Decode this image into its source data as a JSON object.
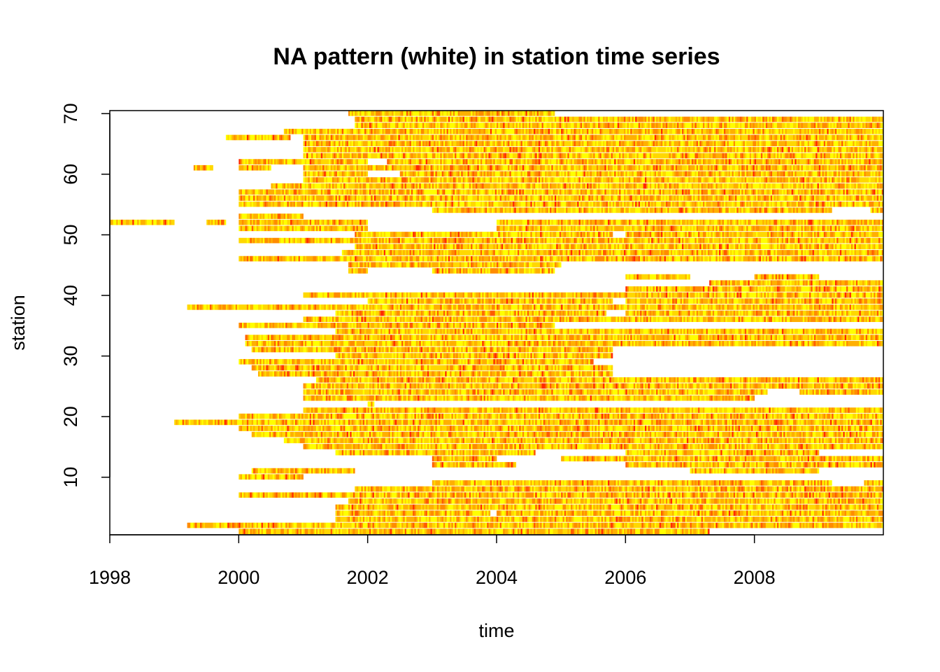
{
  "chart_data": {
    "type": "heatmap",
    "title": "NA pattern (white) in station time series",
    "xlabel": "time",
    "ylabel": "station",
    "x_range": [
      1998,
      2010
    ],
    "y_range": [
      0.5,
      70.5
    ],
    "x_ticks": [
      1998,
      2000,
      2002,
      2004,
      2006,
      2008
    ],
    "x_tick_labels": [
      "1998",
      "2000",
      "2002",
      "2004",
      "2006",
      "2008"
    ],
    "y_ticks": [
      10,
      20,
      30,
      40,
      50,
      60,
      70
    ],
    "y_tick_labels": [
      "10",
      "20",
      "30",
      "40",
      "50",
      "60",
      "70"
    ],
    "missing_color": "#ffffff",
    "color_scale": [
      "#ffff00",
      "#ffd800",
      "#ffb000",
      "#ff8c00",
      "#ff5a00",
      "#ff2a00"
    ],
    "grid": false,
    "legend": "none",
    "stations": [
      {
        "station": 1,
        "segments": [
          [
            2000.0,
            2007.3
          ]
        ]
      },
      {
        "station": 2,
        "segments": [
          [
            1999.2,
            2010.0
          ]
        ]
      },
      {
        "station": 3,
        "segments": [
          [
            2001.5,
            2010.0
          ]
        ]
      },
      {
        "station": 4,
        "segments": [
          [
            2001.5,
            2003.9
          ],
          [
            2004.0,
            2010.0
          ]
        ]
      },
      {
        "station": 5,
        "segments": [
          [
            2001.5,
            2010.0
          ]
        ]
      },
      {
        "station": 6,
        "segments": [
          [
            2001.7,
            2010.0
          ]
        ]
      },
      {
        "station": 7,
        "segments": [
          [
            2000.0,
            2010.0
          ]
        ]
      },
      {
        "station": 8,
        "segments": [
          [
            2001.8,
            2010.0
          ]
        ]
      },
      {
        "station": 9,
        "segments": [
          [
            2003.0,
            2009.2
          ],
          [
            2009.7,
            2010.0
          ]
        ]
      },
      {
        "station": 10,
        "segments": [
          [
            2000.0,
            2001.0
          ]
        ]
      },
      {
        "station": 11,
        "segments": [
          [
            2000.2,
            2001.8
          ],
          [
            2007.0,
            2009.0
          ]
        ]
      },
      {
        "station": 12,
        "segments": [
          [
            2003.0,
            2004.3
          ],
          [
            2006.0,
            2010.0
          ]
        ]
      },
      {
        "station": 13,
        "segments": [
          [
            2003.0,
            2004.0
          ],
          [
            2005.0,
            2010.0
          ]
        ]
      },
      {
        "station": 14,
        "segments": [
          [
            2001.5,
            2004.6
          ],
          [
            2006.0,
            2009.0
          ]
        ]
      },
      {
        "station": 15,
        "segments": [
          [
            2001.0,
            2010.0
          ]
        ]
      },
      {
        "station": 16,
        "segments": [
          [
            2000.7,
            2010.0
          ]
        ]
      },
      {
        "station": 17,
        "segments": [
          [
            2000.2,
            2010.0
          ]
        ]
      },
      {
        "station": 18,
        "segments": [
          [
            2000.0,
            2010.0
          ]
        ]
      },
      {
        "station": 19,
        "segments": [
          [
            1999.0,
            2010.0
          ]
        ]
      },
      {
        "station": 20,
        "segments": [
          [
            2000.0,
            2010.0
          ]
        ]
      },
      {
        "station": 21,
        "segments": [
          [
            2001.0,
            2010.0
          ]
        ]
      },
      {
        "station": 22,
        "segments": [
          [
            2002.0,
            2002.1
          ]
        ]
      },
      {
        "station": 23,
        "segments": [
          [
            2001.0,
            2008.0
          ]
        ]
      },
      {
        "station": 24,
        "segments": [
          [
            2001.0,
            2008.2
          ],
          [
            2008.7,
            2010.0
          ]
        ]
      },
      {
        "station": 25,
        "segments": [
          [
            2001.0,
            2010.0
          ]
        ]
      },
      {
        "station": 26,
        "segments": [
          [
            2001.2,
            2010.0
          ]
        ]
      },
      {
        "station": 27,
        "segments": [
          [
            2000.3,
            2005.8
          ]
        ]
      },
      {
        "station": 28,
        "segments": [
          [
            2000.2,
            2005.8
          ]
        ]
      },
      {
        "station": 29,
        "segments": [
          [
            2000.0,
            2004.0
          ],
          [
            2004.0,
            2005.5
          ]
        ]
      },
      {
        "station": 30,
        "segments": [
          [
            2001.5,
            2005.8
          ]
        ]
      },
      {
        "station": 31,
        "segments": [
          [
            2000.2,
            2005.8
          ]
        ]
      },
      {
        "station": 32,
        "segments": [
          [
            2000.1,
            2010.0
          ]
        ]
      },
      {
        "station": 33,
        "segments": [
          [
            2000.1,
            2003.5
          ],
          [
            2003.5,
            2010.0
          ]
        ]
      },
      {
        "station": 34,
        "segments": [
          [
            2001.5,
            2010.0
          ]
        ]
      },
      {
        "station": 35,
        "segments": [
          [
            2000.0,
            2004.9
          ]
        ]
      },
      {
        "station": 36,
        "segments": [
          [
            2001.0,
            2010.0
          ]
        ]
      },
      {
        "station": 37,
        "segments": [
          [
            2001.5,
            2005.7
          ],
          [
            2006.0,
            2010.0
          ]
        ]
      },
      {
        "station": 38,
        "segments": [
          [
            1999.2,
            2010.0
          ]
        ]
      },
      {
        "station": 39,
        "segments": [
          [
            2002.0,
            2005.8
          ],
          [
            2006.0,
            2010.0
          ]
        ]
      },
      {
        "station": 40,
        "segments": [
          [
            2001.0,
            2010.0
          ]
        ]
      },
      {
        "station": 41,
        "segments": [
          [
            2006.0,
            2010.0
          ]
        ]
      },
      {
        "station": 42,
        "segments": [
          [
            2007.3,
            2010.0
          ]
        ]
      },
      {
        "station": 43,
        "segments": [
          [
            2006.0,
            2007.0
          ],
          [
            2008.0,
            2009.0
          ]
        ]
      },
      {
        "station": 44,
        "segments": [
          [
            2001.7,
            2002.0
          ],
          [
            2003.0,
            2004.9
          ]
        ]
      },
      {
        "station": 45,
        "segments": [
          [
            2001.7,
            2005.0
          ]
        ]
      },
      {
        "station": 46,
        "segments": [
          [
            2000.0,
            2010.0
          ]
        ]
      },
      {
        "station": 47,
        "segments": [
          [
            2001.6,
            2010.0
          ]
        ]
      },
      {
        "station": 48,
        "segments": [
          [
            2001.8,
            2010.0
          ]
        ]
      },
      {
        "station": 49,
        "segments": [
          [
            2000.0,
            2010.0
          ]
        ]
      },
      {
        "station": 50,
        "segments": [
          [
            2001.8,
            2005.8
          ],
          [
            2006.0,
            2010.0
          ]
        ]
      },
      {
        "station": 51,
        "segments": [
          [
            2000.0,
            2002.0
          ],
          [
            2004.0,
            2010.0
          ]
        ]
      },
      {
        "station": 52,
        "segments": [
          [
            1998.0,
            1999.0
          ],
          [
            1999.5,
            1999.8
          ],
          [
            2000.0,
            2002.0
          ],
          [
            2004.0,
            2010.0
          ]
        ]
      },
      {
        "station": 53,
        "segments": [
          [
            2000.0,
            2001.0
          ]
        ]
      },
      {
        "station": 54,
        "segments": [
          [
            2003.0,
            2009.2
          ],
          [
            2009.8,
            2010.0
          ]
        ]
      },
      {
        "station": 55,
        "segments": [
          [
            2000.0,
            2010.0
          ]
        ]
      },
      {
        "station": 56,
        "segments": [
          [
            2000.0,
            2010.0
          ]
        ]
      },
      {
        "station": 57,
        "segments": [
          [
            2000.0,
            2010.0
          ]
        ]
      },
      {
        "station": 58,
        "segments": [
          [
            2000.5,
            2005.8
          ],
          [
            2005.8,
            2010.0
          ]
        ]
      },
      {
        "station": 59,
        "segments": [
          [
            2001.0,
            2002.0
          ],
          [
            2002.0,
            2010.0
          ]
        ]
      },
      {
        "station": 60,
        "segments": [
          [
            2001.0,
            2002.0
          ],
          [
            2002.5,
            2010.0
          ]
        ]
      },
      {
        "station": 61,
        "segments": [
          [
            1999.3,
            1999.6
          ],
          [
            2000.0,
            2000.5
          ],
          [
            2001.0,
            2010.0
          ]
        ]
      },
      {
        "station": 62,
        "segments": [
          [
            2000.0,
            2002.0
          ],
          [
            2002.3,
            2010.0
          ]
        ]
      },
      {
        "station": 63,
        "segments": [
          [
            2001.0,
            2010.0
          ]
        ]
      },
      {
        "station": 64,
        "segments": [
          [
            2001.0,
            2010.0
          ]
        ]
      },
      {
        "station": 65,
        "segments": [
          [
            2001.0,
            2010.0
          ]
        ]
      },
      {
        "station": 66,
        "segments": [
          [
            1999.8,
            2000.8
          ],
          [
            2001.0,
            2010.0
          ]
        ]
      },
      {
        "station": 67,
        "segments": [
          [
            2000.7,
            2010.0
          ]
        ]
      },
      {
        "station": 68,
        "segments": [
          [
            2001.8,
            2010.0
          ]
        ]
      },
      {
        "station": 69,
        "segments": [
          [
            2001.8,
            2003.0
          ],
          [
            2003.0,
            2010.0
          ]
        ]
      },
      {
        "station": 70,
        "segments": [
          [
            2001.7,
            2004.9
          ]
        ]
      }
    ]
  }
}
